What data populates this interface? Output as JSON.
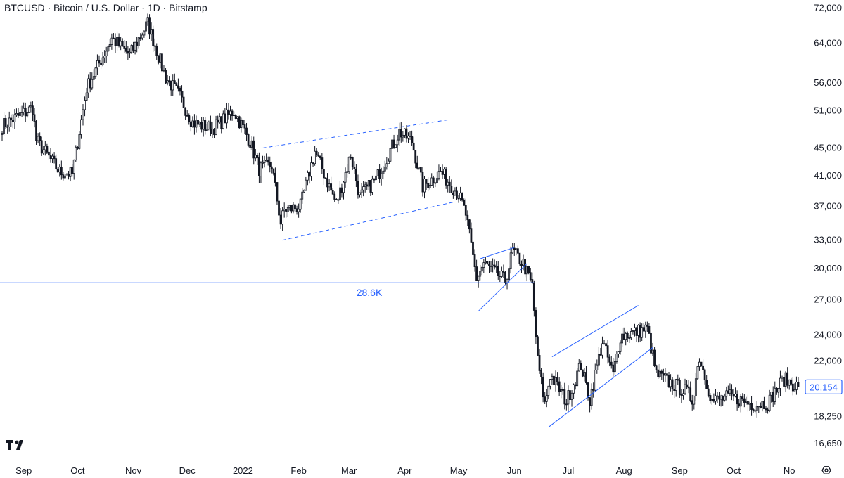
{
  "chart_title": "BTCUSD · Bitcoin / U.S. Dollar · 1D · Bitstamp",
  "chart_data": {
    "type": "candlestick",
    "symbol": "BTCUSD",
    "interval": "1D",
    "exchange": "Bitstamp",
    "y_scale": "log",
    "ylim": [
      16000,
      74000
    ],
    "y_ticks": [
      16650,
      18250,
      22000,
      24000,
      27000,
      30000,
      33000,
      37000,
      41000,
      45000,
      51000,
      56000,
      64000,
      72000
    ],
    "y_tick_labels": [
      "16,650",
      "18,250",
      "22,000",
      "24,000",
      "27,000",
      "30,000",
      "33,000",
      "37,000",
      "41,000",
      "45,000",
      "51,000",
      "56,000",
      "64,000",
      "72,000"
    ],
    "x_labels": [
      "Sep",
      "Oct",
      "Nov",
      "Dec",
      "2022",
      "Feb",
      "Mar",
      "Apr",
      "May",
      "Jun",
      "Jul",
      "Aug",
      "Sep",
      "Oct",
      "No"
    ],
    "x_start_date": "2021-08-20",
    "x_end_date": "2022-11-06",
    "price_path": [
      [
        "2021-08-20",
        48500
      ],
      [
        "2021-09-06",
        51500
      ],
      [
        "2021-09-08",
        46200
      ],
      [
        "2021-09-21",
        41500
      ],
      [
        "2021-09-28",
        41200
      ],
      [
        "2021-10-06",
        55000
      ],
      [
        "2021-10-20",
        65000
      ],
      [
        "2021-10-30",
        61500
      ],
      [
        "2021-11-09",
        68500
      ],
      [
        "2021-11-19",
        57000
      ],
      [
        "2021-11-26",
        54000
      ],
      [
        "2021-12-04",
        49000
      ],
      [
        "2021-12-15",
        48000
      ],
      [
        "2021-12-27",
        51000
      ],
      [
        "2022-01-05",
        46000
      ],
      [
        "2022-01-10",
        41900
      ],
      [
        "2022-01-17",
        42500
      ],
      [
        "2022-01-22",
        35000
      ],
      [
        "2022-01-24",
        36500
      ],
      [
        "2022-02-02",
        37000
      ],
      [
        "2022-02-10",
        44500
      ],
      [
        "2022-02-22",
        37300
      ],
      [
        "2022-03-02",
        44000
      ],
      [
        "2022-03-07",
        38200
      ],
      [
        "2022-03-16",
        40500
      ],
      [
        "2022-03-29",
        47500
      ],
      [
        "2022-04-05",
        46000
      ],
      [
        "2022-04-11",
        39500
      ],
      [
        "2022-04-21",
        41500
      ],
      [
        "2022-05-01",
        38500
      ],
      [
        "2022-05-05",
        36000
      ],
      [
        "2022-05-11",
        29000
      ],
      [
        "2022-05-15",
        30500
      ],
      [
        "2022-05-27",
        28800
      ],
      [
        "2022-05-31",
        31800
      ],
      [
        "2022-06-06",
        30500
      ],
      [
        "2022-06-11",
        28300
      ],
      [
        "2022-06-14",
        22000
      ],
      [
        "2022-06-18",
        19000
      ],
      [
        "2022-06-21",
        21000
      ],
      [
        "2022-06-30",
        19200
      ],
      [
        "2022-07-08",
        21700
      ],
      [
        "2022-07-13",
        19300
      ],
      [
        "2022-07-20",
        23500
      ],
      [
        "2022-07-26",
        21000
      ],
      [
        "2022-07-30",
        23900
      ],
      [
        "2022-08-14",
        24500
      ],
      [
        "2022-08-19",
        21000
      ],
      [
        "2022-09-05",
        19800
      ],
      [
        "2022-09-08",
        19300
      ],
      [
        "2022-09-12",
        22300
      ],
      [
        "2022-09-19",
        19200
      ],
      [
        "2022-09-29",
        19500
      ],
      [
        "2022-10-12",
        19000
      ],
      [
        "2022-10-20",
        19100
      ],
      [
        "2022-10-29",
        20700
      ],
      [
        "2022-11-06",
        20154
      ]
    ],
    "horizontal_level": {
      "value": 28600,
      "label": "28.6K"
    },
    "last_price": {
      "value": 20154,
      "label": "20,154"
    },
    "annotations": [
      {
        "type": "channel",
        "style": "dashed",
        "upper": [
          [
            "2022-01-12",
            45000
          ],
          [
            "2022-04-26",
            49500
          ]
        ],
        "lower": [
          [
            "2022-01-23",
            33000
          ],
          [
            "2022-04-28",
            37500
          ]
        ]
      },
      {
        "type": "wedge",
        "style": "solid",
        "upper": [
          [
            "2022-05-13",
            31000
          ],
          [
            "2022-06-01",
            32200
          ]
        ],
        "lower": [
          [
            "2022-05-12",
            26000
          ],
          [
            "2022-06-08",
            30500
          ]
        ]
      },
      {
        "type": "channel",
        "style": "solid",
        "upper": [
          [
            "2022-06-22",
            22300
          ],
          [
            "2022-08-09",
            26500
          ]
        ],
        "lower": [
          [
            "2022-06-20",
            17600
          ],
          [
            "2022-08-17",
            23000
          ]
        ]
      }
    ],
    "colors": {
      "up": "#131722",
      "down": "#131722",
      "annotation": "#2962ff",
      "text": "#131722"
    }
  },
  "logo": {
    "icon": "tradingview-logo-icon"
  },
  "settings": {
    "icon": "gear-icon"
  }
}
